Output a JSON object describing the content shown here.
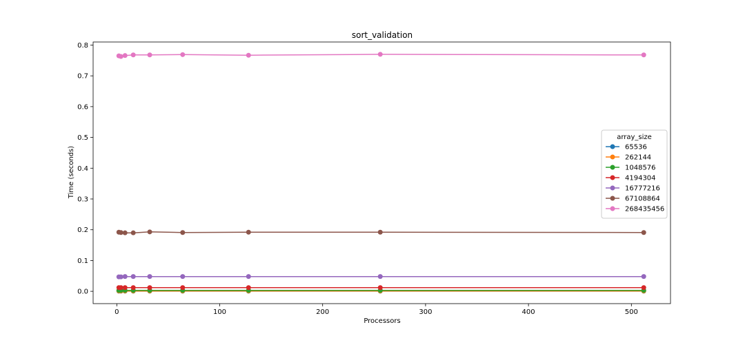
{
  "chart_data": {
    "type": "line",
    "title": "sort_validation",
    "xlabel": "Processors",
    "ylabel": "Time (seconds)",
    "xlim": [
      -23,
      538
    ],
    "ylim": [
      -0.04,
      0.81
    ],
    "xticks": [
      0,
      100,
      200,
      300,
      400,
      500
    ],
    "yticks": [
      0.0,
      0.1,
      0.2,
      0.3,
      0.4,
      0.5,
      0.6,
      0.7,
      0.8
    ],
    "ytick_labels": [
      "0.0",
      "0.1",
      "0.2",
      "0.3",
      "0.4",
      "0.5",
      "0.6",
      "0.7",
      "0.8"
    ],
    "grid": false,
    "legend": {
      "title": "array_size",
      "placement": "right"
    },
    "x": [
      2,
      4,
      8,
      16,
      32,
      64,
      128,
      256,
      512
    ],
    "series": [
      {
        "name": "65536",
        "color": "#1f77b4",
        "values": [
          0.0005,
          0.0005,
          0.0005,
          0.0005,
          0.0005,
          0.0005,
          0.0005,
          0.0005,
          0.0005
        ]
      },
      {
        "name": "262144",
        "color": "#ff7f0e",
        "values": [
          0.001,
          0.001,
          0.001,
          0.001,
          0.001,
          0.001,
          0.001,
          0.001,
          0.001
        ]
      },
      {
        "name": "1048576",
        "color": "#2ca02c",
        "values": [
          0.003,
          0.003,
          0.003,
          0.003,
          0.003,
          0.003,
          0.003,
          0.003,
          0.003
        ]
      },
      {
        "name": "4194304",
        "color": "#d62728",
        "values": [
          0.012,
          0.012,
          0.012,
          0.012,
          0.012,
          0.012,
          0.012,
          0.012,
          0.012
        ]
      },
      {
        "name": "16777216",
        "color": "#9467bd",
        "values": [
          0.047,
          0.047,
          0.048,
          0.048,
          0.048,
          0.048,
          0.048,
          0.048,
          0.048
        ]
      },
      {
        "name": "67108864",
        "color": "#8c564b",
        "values": [
          0.192,
          0.191,
          0.19,
          0.19,
          0.193,
          0.191,
          0.192,
          0.192,
          0.191
        ]
      },
      {
        "name": "268435456",
        "color": "#e377c2",
        "values": [
          0.765,
          0.763,
          0.766,
          0.768,
          0.768,
          0.769,
          0.767,
          0.77,
          0.768
        ]
      }
    ]
  }
}
